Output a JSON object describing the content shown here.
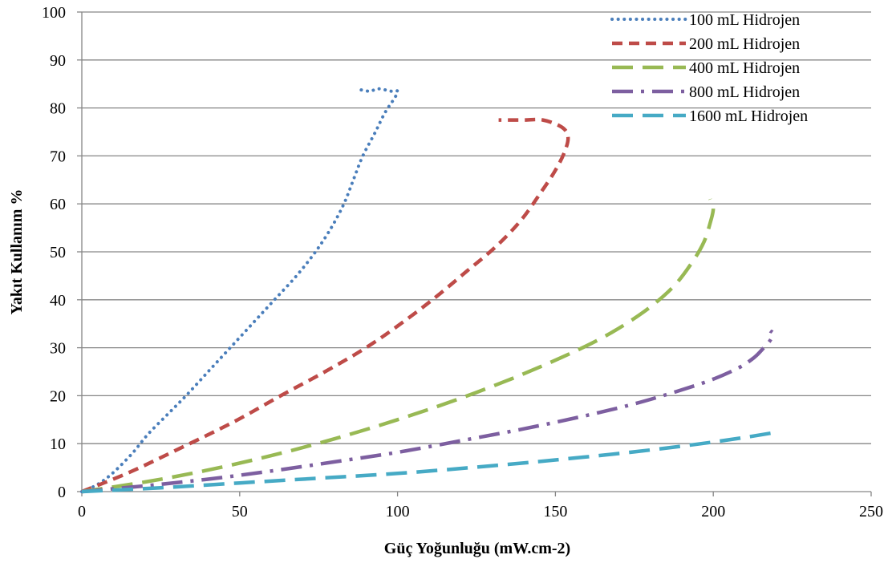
{
  "chart_data": {
    "type": "line",
    "title": "",
    "xlabel": "Güç Yoğunluğu (mW.cm-2)",
    "ylabel": "Yakıt Kullanım %",
    "xlim": [
      0,
      250
    ],
    "ylim": [
      0,
      100
    ],
    "x_ticks": [
      0,
      50,
      100,
      150,
      200,
      250
    ],
    "y_ticks": [
      0,
      10,
      20,
      30,
      40,
      50,
      60,
      70,
      80,
      90,
      100
    ],
    "x_tick_labels": [
      "0",
      "50",
      "100",
      "150",
      "200",
      "250"
    ],
    "y_tick_labels": [
      "0",
      "10",
      "20",
      "30",
      "40",
      "50",
      "60",
      "70",
      "80",
      "90",
      "100"
    ],
    "grid": "horizontal",
    "legend_position": "top-right",
    "series": [
      {
        "name": "100 mL Hidrojen",
        "color": "#4a7ebb",
        "style": "dotted",
        "x": [
          0,
          5,
          10,
          16,
          21,
          27,
          33,
          40,
          47,
          54,
          61,
          68,
          74,
          79,
          83,
          86,
          89,
          93,
          96,
          99,
          100,
          98,
          94,
          91,
          87
        ],
        "y": [
          0,
          1.5,
          4,
          8,
          12,
          16,
          20,
          25,
          30,
          35,
          40,
          45,
          50,
          55,
          60,
          65,
          70,
          75,
          79,
          82,
          83.5,
          83.5,
          84,
          83.5,
          84
        ]
      },
      {
        "name": "200 mL Hidrojen",
        "color": "#be4b48",
        "style": "dashed",
        "x": [
          0,
          15,
          31,
          48,
          63,
          77,
          90,
          101,
          112,
          122,
          131,
          139,
          145,
          150,
          153,
          154,
          152,
          146,
          140,
          132
        ],
        "y": [
          0,
          4,
          9,
          14.5,
          20,
          25,
          30,
          35,
          40.5,
          46,
          51,
          56.5,
          62,
          67,
          71,
          74,
          76,
          77.5,
          77.5,
          77.5
        ]
      },
      {
        "name": "400 mL Hidrojen",
        "color": "#98b954",
        "style": "long-dash",
        "x": [
          0,
          20,
          40,
          60,
          80,
          100,
          118,
          136,
          152,
          166,
          178,
          187,
          193,
          197,
          199,
          200,
          199
        ],
        "y": [
          0,
          2,
          4.5,
          7.5,
          11,
          15,
          19,
          23.5,
          28,
          32.5,
          37.5,
          42.5,
          47.5,
          52,
          56,
          59,
          61
        ]
      },
      {
        "name": "800 mL Hidrojen",
        "color": "#7d5fa0",
        "style": "dash-dot",
        "x": [
          0,
          20,
          40,
          60,
          80,
          100,
          120,
          140,
          160,
          175,
          188,
          199,
          208,
          213,
          216,
          218,
          219,
          218
        ],
        "y": [
          0,
          1.2,
          2.6,
          4.3,
          6.2,
          8.2,
          10.6,
          13.1,
          15.9,
          18.3,
          20.8,
          23.2,
          25.8,
          28,
          30,
          31.5,
          33,
          33.5
        ]
      },
      {
        "name": "1600 mL Hidrojen",
        "color": "#46aac5",
        "style": "long-dash",
        "x": [
          0,
          25,
          50,
          75,
          100,
          125,
          150,
          175,
          195,
          210,
          221
        ],
        "y": [
          0,
          0.8,
          1.8,
          2.8,
          3.8,
          5.1,
          6.6,
          8.3,
          9.9,
          11.3,
          12.5
        ]
      }
    ]
  }
}
